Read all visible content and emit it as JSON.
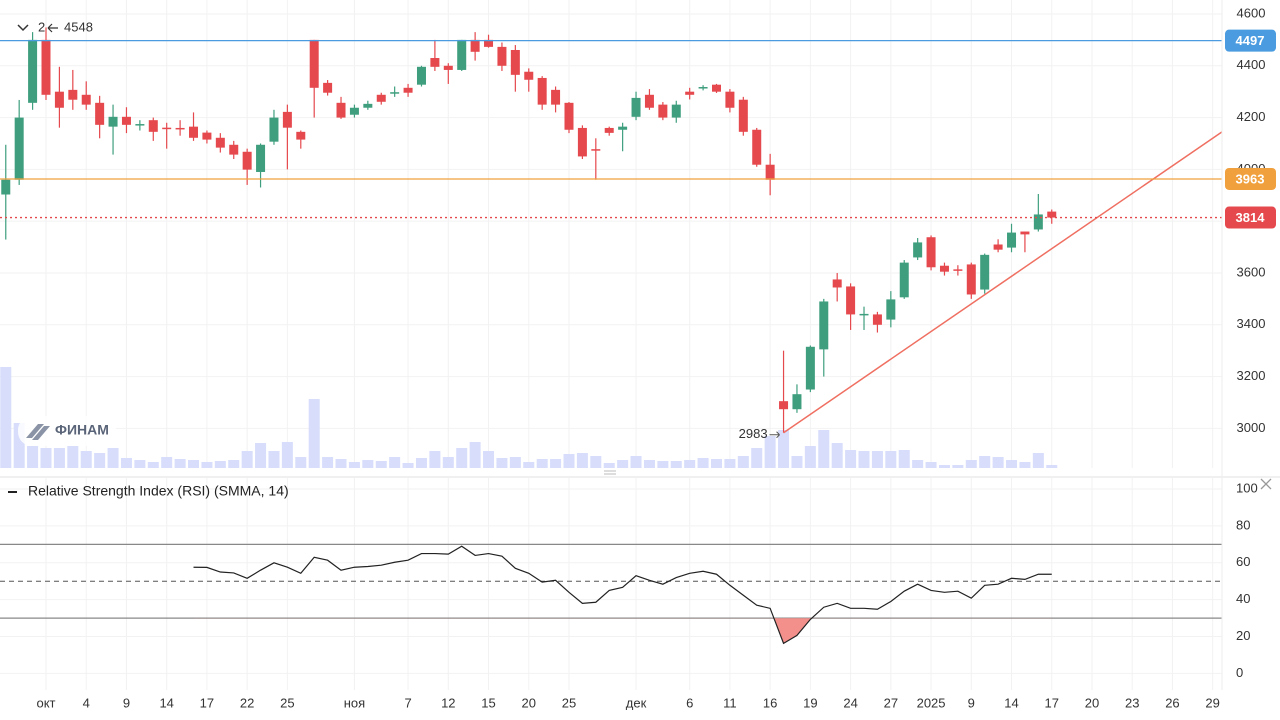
{
  "chart_data": {
    "type": "candlestick",
    "collapsed_count": "2",
    "high_annotation": 4548,
    "low_annotation": 2983,
    "watermark": "ФИНАМ",
    "categories": [
      null,
      null,
      null,
      "окт",
      null,
      null,
      "4",
      null,
      null,
      "9",
      null,
      null,
      "14",
      null,
      null,
      "17",
      null,
      null,
      "22",
      null,
      null,
      "25",
      null,
      null,
      null,
      null,
      "ноя",
      null,
      null,
      null,
      "7",
      null,
      null,
      "12",
      null,
      null,
      "15",
      null,
      null,
      "20",
      null,
      null,
      "25",
      null,
      null,
      null,
      null,
      "дек",
      null,
      null,
      null,
      "6",
      null,
      null,
      "11",
      null,
      null,
      "16",
      null,
      null,
      "19",
      null,
      null,
      "24",
      null,
      null,
      "27",
      null,
      null,
      "2025",
      null,
      null,
      "9",
      null,
      null,
      "14",
      null,
      null,
      "17",
      null,
      null,
      "20",
      null,
      null,
      "23",
      null,
      null,
      "26",
      null,
      null,
      "29"
    ],
    "open": [
      3903,
      3960,
      4257,
      4500,
      4300,
      4307,
      4288,
      4257,
      4165,
      4203,
      4172,
      4190,
      4161,
      4160,
      4165,
      4142,
      4122,
      4095,
      4068,
      3990,
      4107,
      4222,
      4145,
      4500,
      4334,
      4257,
      4211,
      4238,
      4288,
      4296,
      4315,
      4327,
      4430,
      4400,
      4384,
      4500,
      4500,
      4473,
      4461,
      4377,
      4353,
      4307,
      4257,
      4160,
      4078,
      4160,
      4153,
      4203,
      4288,
      4250,
      4200,
      4300,
      4315,
      4327,
      4300,
      4269,
      4153,
      4018,
      3105,
      3074,
      3150,
      3305,
      3575,
      3548,
      3440,
      3440,
      3420,
      3506,
      3660,
      3738,
      3628,
      3614,
      3633,
      3536,
      3710,
      3698,
      3760,
      3768,
      3837,
      null,
      null,
      null,
      null,
      null,
      null,
      null,
      null,
      null,
      null,
      null,
      null
    ],
    "high": [
      4095,
      4268,
      4530,
      4548,
      4396,
      4384,
      4340,
      4284,
      4250,
      4240,
      4190,
      4200,
      4180,
      4190,
      4220,
      4150,
      4140,
      4110,
      4080,
      4100,
      4230,
      4250,
      4150,
      4500,
      4345,
      4280,
      4250,
      4265,
      4296,
      4320,
      4330,
      4400,
      4500,
      4410,
      4500,
      4530,
      4520,
      4490,
      4480,
      4390,
      4360,
      4320,
      4260,
      4170,
      4120,
      4165,
      4180,
      4300,
      4310,
      4260,
      4265,
      4315,
      4325,
      4330,
      4310,
      4280,
      4160,
      4060,
      3300,
      3170,
      3320,
      3500,
      3600,
      3560,
      3470,
      3450,
      3530,
      3650,
      3735,
      3745,
      3640,
      3630,
      3640,
      3675,
      3730,
      3790,
      3760,
      3905,
      3845,
      null,
      null,
      null,
      null,
      null,
      null,
      null,
      null,
      null,
      null,
      null,
      null
    ],
    "low": [
      3729,
      3940,
      4230,
      4268,
      4161,
      4230,
      4230,
      4120,
      4057,
      4140,
      4150,
      4110,
      4080,
      4130,
      4110,
      4100,
      4065,
      4040,
      3940,
      3930,
      4095,
      4000,
      4080,
      4200,
      4285,
      4195,
      4200,
      4230,
      4250,
      4280,
      4280,
      4320,
      4380,
      4330,
      4380,
      4420,
      4470,
      4380,
      4300,
      4300,
      4230,
      4220,
      4140,
      4040,
      3960,
      4130,
      4070,
      4190,
      4230,
      4190,
      4180,
      4270,
      4305,
      4295,
      4220,
      4130,
      4010,
      3900,
      2983,
      3060,
      3140,
      3200,
      3490,
      3380,
      3380,
      3370,
      3390,
      3500,
      3650,
      3610,
      3590,
      3590,
      3500,
      3520,
      3680,
      3680,
      3680,
      3760,
      3790,
      null,
      null,
      null,
      null,
      null,
      null,
      null,
      null,
      null,
      null,
      null,
      null
    ],
    "close": [
      3960,
      4200,
      4500,
      4288,
      4238,
      4269,
      4250,
      4172,
      4203,
      4172,
      4175,
      4145,
      4160,
      4158,
      4122,
      4115,
      4084,
      4057,
      3999,
      4095,
      4200,
      4161,
      4115,
      4315,
      4296,
      4200,
      4238,
      4253,
      4261,
      4298,
      4296,
      4396,
      4396,
      4384,
      4500,
      4454,
      4473,
      4400,
      4365,
      4346,
      4250,
      4250,
      4153,
      4050,
      4076,
      4141,
      4165,
      4276,
      4238,
      4200,
      4250,
      4288,
      4318,
      4300,
      4238,
      4145,
      4018,
      3960,
      3074,
      3132,
      3315,
      3490,
      3544,
      3440,
      3442,
      3400,
      3498,
      3640,
      3718,
      3622,
      3605,
      3612,
      3517,
      3670,
      3690,
      3756,
      3749,
      3826,
      3814,
      null,
      null,
      null,
      null,
      null,
      null,
      null,
      null,
      null,
      null,
      null,
      null
    ],
    "volume": [
      101,
      45,
      22,
      20,
      20,
      22,
      17,
      15,
      20,
      10,
      8,
      6,
      11,
      9,
      8,
      6,
      7,
      8,
      17,
      25,
      17,
      26,
      11,
      69,
      11,
      9,
      6,
      8,
      7,
      11,
      5,
      10,
      17,
      11,
      20,
      26,
      17,
      10,
      11,
      6,
      9,
      9,
      14,
      15,
      12,
      5,
      8,
      12,
      8,
      7,
      7,
      8,
      10,
      9,
      9,
      12,
      20,
      32,
      38,
      12,
      22,
      38,
      25,
      18,
      17,
      17,
      17,
      18,
      8,
      6,
      3,
      3,
      8,
      12,
      11,
      8,
      6,
      15,
      3,
      null,
      null,
      null,
      null,
      null,
      null,
      null,
      null,
      null,
      null,
      null,
      null
    ],
    "volume_ylim": [
      0,
      468
    ],
    "up_color": "#3e9e7e",
    "down_color": "#e5484d",
    "volume_color": "#d7ddfb",
    "ylim": [
      2847,
      4654
    ],
    "yticks": [
      3000,
      3200,
      3400,
      3600,
      3800,
      4000,
      4200,
      4400,
      4600
    ],
    "grid": true,
    "price_lines": [
      {
        "value": 4497,
        "color": "#4a9be0",
        "style": "solid"
      },
      {
        "value": 3963,
        "color": "#f0a03c",
        "style": "solid"
      },
      {
        "value": 3814,
        "color": "#e5484d",
        "style": "dotted"
      }
    ],
    "trendline_end": 4145,
    "trendline_color": "#ef6f61",
    "rsi": {
      "title": "Relative Strength Index (RSI) (SMMA, 14)",
      "color": "#222222",
      "fill_color": "#f4908c",
      "values": [
        null,
        null,
        null,
        null,
        null,
        null,
        null,
        null,
        null,
        null,
        null,
        null,
        null,
        null,
        57.6,
        57.5,
        55,
        54.5,
        51.6,
        56,
        60,
        57.6,
        54.3,
        63,
        61.4,
        56,
        57.6,
        58,
        58.7,
        60.3,
        61.4,
        65,
        65,
        64.7,
        69,
        64,
        65,
        63.6,
        57,
        54.3,
        49.5,
        50.5,
        44,
        38,
        38.6,
        45,
        46.7,
        53,
        50.5,
        48.4,
        52,
        54.3,
        55.4,
        53.8,
        47.8,
        42.4,
        37,
        35.3,
        16.3,
        20.6,
        29.3,
        35.9,
        38,
        35.3,
        35.3,
        34.8,
        39,
        44.6,
        48.4,
        45,
        44,
        44.6,
        40.8,
        47.8,
        48.4,
        51.6,
        51,
        53.8,
        53.8,
        null,
        null,
        null,
        null,
        null,
        null,
        null,
        null,
        null,
        null,
        null,
        null
      ],
      "ylim": [
        -9,
        106
      ],
      "yticks": [
        0,
        20,
        40,
        60,
        80,
        100
      ],
      "levels": [
        70,
        50,
        30
      ],
      "oversold": 30
    }
  }
}
